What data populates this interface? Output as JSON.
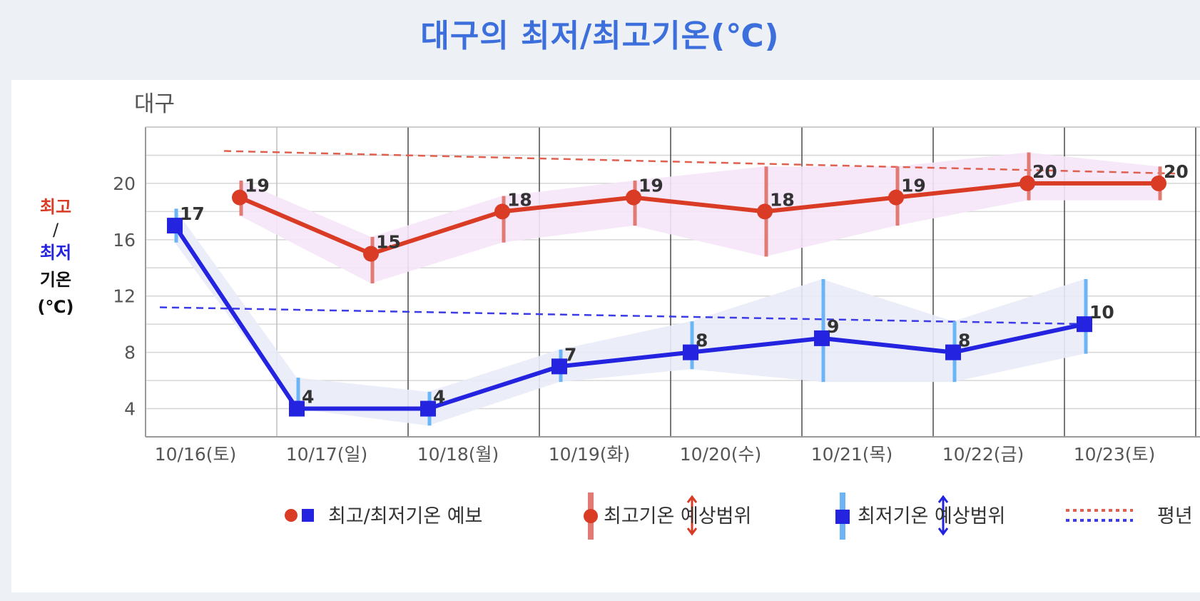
{
  "page": {
    "title": "대구의 최저/최고기온(℃)"
  },
  "chart_data": {
    "type": "line",
    "subtitle": "대구",
    "ylabel": {
      "line1": "최고",
      "line2": "/",
      "line3": "최저",
      "line4": "기온",
      "line5": "(℃)"
    },
    "categories": [
      "10/16(토)",
      "10/17(일)",
      "10/18(월)",
      "10/19(화)",
      "10/20(수)",
      "10/21(목)",
      "10/22(금)",
      "10/23(토)"
    ],
    "yticks": [
      4,
      8,
      12,
      16,
      20
    ],
    "ylim": [
      2,
      24
    ],
    "grid": true,
    "series": [
      {
        "key": "high",
        "values": [
          19,
          15,
          18,
          19,
          18,
          19,
          20,
          20
        ],
        "range_low": [
          17.7,
          12.9,
          15.8,
          17,
          14.8,
          17,
          18.8,
          18.8
        ],
        "range_high": [
          20.2,
          16.2,
          19.1,
          20.2,
          21.2,
          21.2,
          22.2,
          21.2
        ],
        "color": "#d93b25",
        "range_color": "#e07a72",
        "band_color": "#f5e6f8"
      },
      {
        "key": "low",
        "values": [
          17,
          4,
          4,
          7,
          8,
          9,
          8,
          10
        ],
        "range_low": [
          15.8,
          4,
          2.8,
          5.9,
          6.8,
          5.9,
          5.9,
          7.9
        ],
        "range_high": [
          18.2,
          6.2,
          5.2,
          8.2,
          10.2,
          13.2,
          10.2,
          13.2
        ],
        "color": "#2323e0",
        "range_color": "#6bb5f7",
        "band_color": "#e9ebf8"
      }
    ],
    "normal_high": {
      "start": 22.3,
      "end": 20.7,
      "color": "#e06050"
    },
    "normal_low": {
      "start": 11.2,
      "end": 10.0,
      "color": "#3b3be8"
    },
    "legend": {
      "placement": "bottom",
      "forecast": "최고/최저기온 예보",
      "high_range": "최고기온 예상범위",
      "low_range": "최저기온 예상범위",
      "normal": "평년"
    }
  }
}
